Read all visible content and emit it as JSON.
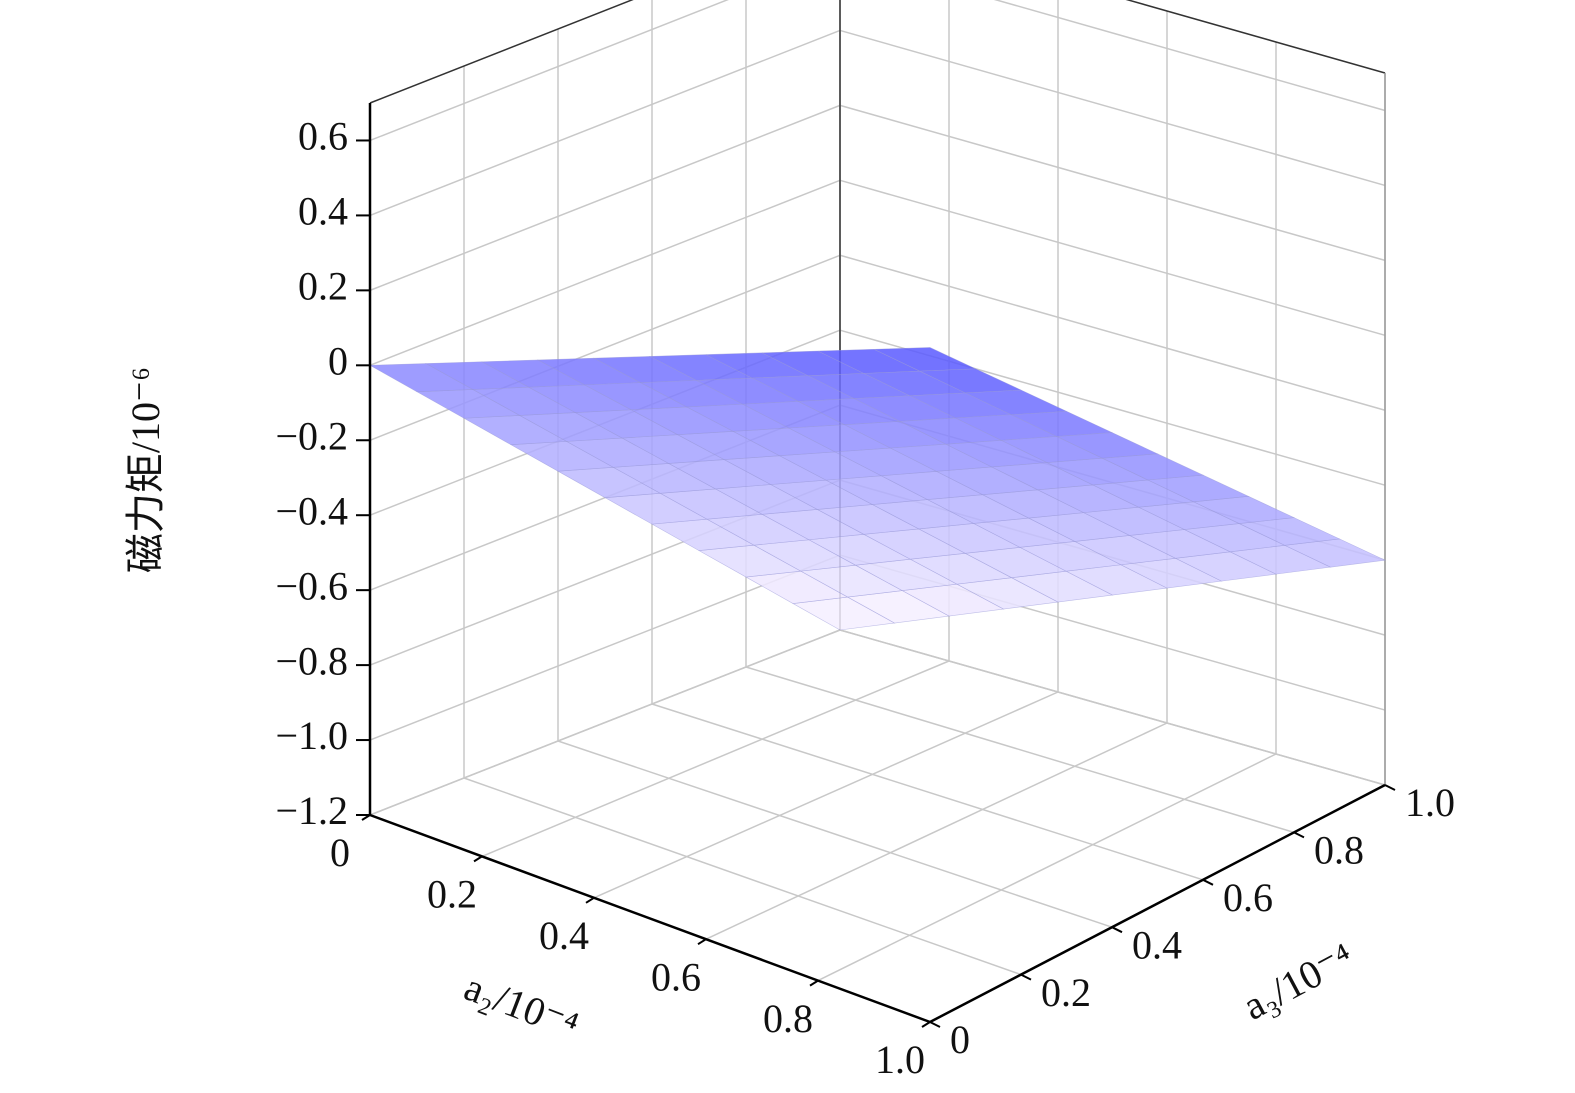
{
  "chart_data": {
    "type": "surface3d",
    "xlabel": "a₂/10⁻⁴",
    "ylabel": "a₃/10⁻⁴",
    "zlabel": "磁力矩/10⁻⁶",
    "x": [
      0,
      0.1,
      0.2,
      0.3,
      0.4,
      0.5,
      0.6,
      0.7,
      0.8,
      0.9,
      1
    ],
    "y": [
      0,
      0.1,
      0.2,
      0.3,
      0.4,
      0.5,
      0.6,
      0.7,
      0.8,
      0.9,
      1
    ],
    "z": [
      [
        0,
        0.06,
        0.12,
        0.18,
        0.24,
        0.3,
        0.36,
        0.42,
        0.48,
        0.54,
        0.6
      ],
      [
        -0.12,
        -0.06,
        0,
        0.06,
        0.12,
        0.18,
        0.24,
        0.3,
        0.36,
        0.42,
        0.48
      ],
      [
        -0.24,
        -0.18,
        -0.12,
        -0.06,
        0,
        0.06,
        0.12,
        0.18,
        0.24,
        0.3,
        0.36
      ],
      [
        -0.36,
        -0.3,
        -0.24,
        -0.18,
        -0.12,
        -0.06,
        0,
        0.06,
        0.12,
        0.18,
        0.24
      ],
      [
        -0.48,
        -0.42,
        -0.36,
        -0.3,
        -0.24,
        -0.18,
        -0.12,
        -0.06,
        0,
        0.06,
        0.12
      ],
      [
        -0.6,
        -0.54,
        -0.48,
        -0.42,
        -0.36,
        -0.3,
        -0.24,
        -0.18,
        -0.12,
        -0.06,
        0
      ],
      [
        -0.72,
        -0.66,
        -0.6,
        -0.54,
        -0.48,
        -0.42,
        -0.36,
        -0.3,
        -0.24,
        -0.18,
        -0.12
      ],
      [
        -0.84,
        -0.78,
        -0.72,
        -0.66,
        -0.6,
        -0.54,
        -0.48,
        -0.42,
        -0.36,
        -0.3,
        -0.24
      ],
      [
        -0.96,
        -0.9,
        -0.84,
        -0.78,
        -0.72,
        -0.66,
        -0.6,
        -0.54,
        -0.48,
        -0.42,
        -0.36
      ],
      [
        -1.08,
        -1.02,
        -0.96,
        -0.9,
        -0.84,
        -0.78,
        -0.72,
        -0.66,
        -0.6,
        -0.54,
        -0.48
      ],
      [
        -1.2,
        -1.14,
        -1.08,
        -1.02,
        -0.96,
        -0.9,
        -0.84,
        -0.78,
        -0.72,
        -0.66,
        -0.6
      ]
    ],
    "colormap": [
      "#f4eeff",
      "#5a5aff"
    ],
    "xlim": [
      0,
      1
    ],
    "ylim": [
      0,
      1
    ],
    "zlim": [
      -1.2,
      0.7
    ],
    "xticks": [
      0,
      0.2,
      0.4,
      0.6,
      0.8,
      {
        "value": 1,
        "label": "1.0"
      }
    ],
    "yticks": [
      0,
      0.2,
      0.4,
      0.6,
      0.8,
      {
        "value": 1,
        "label": "1.0"
      }
    ],
    "zticks": [
      {
        "value": -1.2,
        "label": "−1.2"
      },
      {
        "value": -1,
        "label": "−1.0"
      },
      {
        "value": -0.8,
        "label": "−0.8"
      },
      {
        "value": -0.6,
        "label": "−0.6"
      },
      {
        "value": -0.4,
        "label": "−0.4"
      },
      {
        "value": -0.2,
        "label": "−0.2"
      },
      0,
      0.2,
      0.4,
      0.6
    ],
    "grid": true
  }
}
